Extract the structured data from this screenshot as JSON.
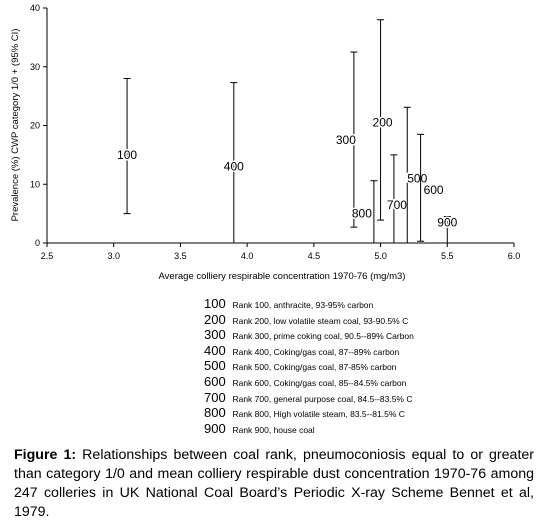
{
  "chart_data": {
    "type": "scatter",
    "subtype": "error-bar interval chart with point labels",
    "xlabel": "Average colliery respirable concentration 1970-76 (mg/m3)",
    "ylabel": "Prevalence (%) CWP category 1/0 + (95% CI)",
    "xlim": [
      2.5,
      6.0
    ],
    "ylim": [
      0,
      40
    ],
    "xticks": [
      "2.5",
      "3.0",
      "3.5",
      "4.0",
      "4.5",
      "5.0",
      "5.5",
      "6.0"
    ],
    "yticks": [
      "0",
      "10",
      "20",
      "30",
      "40"
    ],
    "grid": false,
    "points": [
      {
        "label": "100",
        "x": 3.1,
        "low": 5.0,
        "high": 28.0
      },
      {
        "label": "400",
        "x": 3.9,
        "low": 0.0,
        "high": 27.3
      },
      {
        "label": "300",
        "x": 4.8,
        "low": 2.7,
        "high": 32.5
      },
      {
        "label": "800",
        "x": 4.95,
        "low": 0.0,
        "high": 10.6
      },
      {
        "label": "200",
        "x": 5.0,
        "low": 3.9,
        "high": 38.0
      },
      {
        "label": "700",
        "x": 5.1,
        "low": 0.0,
        "high": 15.0
      },
      {
        "label": "500",
        "x": 5.2,
        "low": 0.0,
        "high": 23.1
      },
      {
        "label": "600",
        "x": 5.3,
        "low": 0.3,
        "high": 18.5
      },
      {
        "label": "900",
        "x": 5.5,
        "low": 0.0,
        "high": 4.5
      }
    ]
  },
  "legend": [
    {
      "code": "100",
      "text": "Rank 100, anthracite, 93-95% carbon"
    },
    {
      "code": "200",
      "text": "Rank 200, low volatile steam coal, 93-90.5% C"
    },
    {
      "code": "300",
      "text": "Rank 300, prime coking coal, 90.5--89% Carbon"
    },
    {
      "code": "400",
      "text": "Rank 400, Coking/gas coal, 87--89% carbon"
    },
    {
      "code": "500",
      "text": "Rank 500, Coking/gas coal, 87-85% carbon"
    },
    {
      "code": "600",
      "text": "Rank 600, Coking/gas coal, 85--84.5% carbon"
    },
    {
      "code": "700",
      "text": "Rank 700, general purpose coal, 84.5--83.5% C"
    },
    {
      "code": "800",
      "text": "Rank 800, High volatile steam, 83.5--81.5% C"
    },
    {
      "code": "900",
      "text": "Rank 900, house coal"
    }
  ],
  "caption": {
    "label": "Figure 1:",
    "text": " Relationships between coal rank, pneumoconiosis equal to or greater than category 1/0 and mean colliery respirable dust concentration 1970-76 among 247 colleries in UK National Coal Board’s Periodic X-ray Scheme Bennet et al, 1979."
  }
}
